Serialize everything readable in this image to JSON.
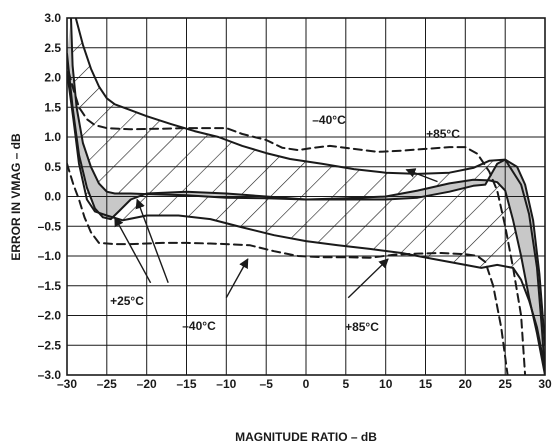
{
  "chart_data": {
    "type": "line",
    "title": "",
    "xlabel": "MAGNITUDE RATIO – dB",
    "ylabel": "ERROR IN VMAG – dB",
    "xlim": [
      -30,
      30
    ],
    "ylim": [
      -3.0,
      3.0
    ],
    "x_ticks": [
      "–30",
      "–25",
      "–20",
      "–15",
      "–10",
      "–5",
      "0",
      "5",
      "10",
      "15",
      "20",
      "25",
      "30"
    ],
    "y_ticks": [
      "3.0",
      "2.5",
      "2.0",
      "1.5",
      "1.0",
      "0.5",
      "0.0",
      "–0.5",
      "–1.0",
      "–1.5",
      "–2.0",
      "–2.5",
      "–3.0"
    ],
    "grid": true,
    "series": [
      {
        "name": "",
        "style": "solid",
        "points": [
          [
            -28.9,
            3.0
          ],
          [
            -28,
            2.55
          ],
          [
            -27,
            2.15
          ],
          [
            -26,
            1.85
          ],
          [
            -25,
            1.65
          ],
          [
            -24,
            1.55
          ],
          [
            -22,
            1.45
          ],
          [
            -20,
            1.35
          ],
          [
            -17,
            1.22
          ],
          [
            -14,
            1.1
          ],
          [
            -11,
            1.0
          ],
          [
            -8,
            0.85
          ],
          [
            -5,
            0.73
          ],
          [
            -2,
            0.63
          ],
          [
            2,
            0.55
          ],
          [
            6,
            0.46
          ],
          [
            10,
            0.4
          ],
          [
            14,
            0.38
          ],
          [
            18,
            0.4
          ],
          [
            21,
            0.48
          ],
          [
            23,
            0.6
          ],
          [
            25,
            0.62
          ],
          [
            27,
            0.2
          ],
          [
            28,
            -0.3
          ],
          [
            29,
            -1.2
          ],
          [
            29.6,
            -2.2
          ],
          [
            30,
            -3.0
          ]
        ]
      },
      {
        "name": "",
        "style": "solid",
        "points": [
          [
            -29.5,
            3.0
          ],
          [
            -29.3,
            2.2
          ],
          [
            -28.8,
            1.5
          ],
          [
            -28,
            0.9
          ],
          [
            -27,
            0.5
          ],
          [
            -26,
            0.22
          ],
          [
            -25,
            0.08
          ],
          [
            -24,
            0.05
          ],
          [
            -22,
            0.05
          ],
          [
            -20,
            0.04
          ],
          [
            -15,
            0.02
          ],
          [
            -10,
            -0.02
          ],
          [
            -5,
            -0.03
          ],
          [
            0,
            -0.05
          ],
          [
            5,
            -0.03
          ],
          [
            10,
            0.0
          ],
          [
            14,
            0.1
          ],
          [
            18,
            0.22
          ],
          [
            21,
            0.28
          ],
          [
            23,
            0.27
          ],
          [
            24,
            0.24
          ],
          [
            25,
            0.1
          ],
          [
            26,
            -0.4
          ],
          [
            27,
            -1.0
          ],
          [
            28,
            -1.7
          ],
          [
            29,
            -2.3
          ],
          [
            30,
            -3.0
          ]
        ]
      },
      {
        "name": "",
        "style": "solid",
        "points": [
          [
            -30,
            2.4
          ],
          [
            -29.3,
            1.5
          ],
          [
            -28.5,
            0.7
          ],
          [
            -27.5,
            0.15
          ],
          [
            -26.5,
            -0.2
          ],
          [
            -25.5,
            -0.35
          ],
          [
            -24.5,
            -0.38
          ],
          [
            -23.5,
            -0.25
          ],
          [
            -22,
            -0.05
          ],
          [
            -20,
            0.05
          ],
          [
            -15,
            0.08
          ],
          [
            -10,
            0.05
          ],
          [
            -5,
            0.0
          ],
          [
            0,
            -0.05
          ],
          [
            5,
            -0.05
          ],
          [
            10,
            -0.05
          ],
          [
            14,
            -0.02
          ],
          [
            18,
            0.08
          ],
          [
            21,
            0.18
          ],
          [
            22.5,
            0.2
          ],
          [
            24,
            0.55
          ],
          [
            25,
            0.62
          ],
          [
            26.5,
            0.5
          ],
          [
            27.5,
            0.2
          ],
          [
            28.5,
            -0.4
          ],
          [
            29.3,
            -1.3
          ],
          [
            30,
            -2.5
          ]
        ]
      },
      {
        "name": "",
        "style": "solid",
        "points": [
          [
            -30,
            2.1
          ],
          [
            -29.2,
            1.3
          ],
          [
            -28.5,
            0.55
          ],
          [
            -27.5,
            -0.05
          ],
          [
            -26.5,
            -0.25
          ],
          [
            -25,
            -0.32
          ],
          [
            -23,
            -0.4
          ],
          [
            -20,
            -0.32
          ],
          [
            -16,
            -0.32
          ],
          [
            -12,
            -0.38
          ],
          [
            -8,
            -0.52
          ],
          [
            -4,
            -0.65
          ],
          [
            0,
            -0.75
          ],
          [
            4,
            -0.82
          ],
          [
            8,
            -0.88
          ],
          [
            12,
            -0.95
          ],
          [
            16,
            -1.05
          ],
          [
            20,
            -1.15
          ],
          [
            22,
            -1.2
          ],
          [
            24,
            -1.15
          ],
          [
            26,
            -1.2
          ],
          [
            27,
            -1.4
          ],
          [
            28,
            -1.75
          ],
          [
            29,
            -2.2
          ],
          [
            30,
            -2.9
          ]
        ]
      },
      {
        "name": "",
        "style": "dashed",
        "points": [
          [
            -29.8,
            2.1
          ],
          [
            -29.2,
            1.8
          ],
          [
            -28.5,
            1.5
          ],
          [
            -27.5,
            1.3
          ],
          [
            -26.5,
            1.2
          ],
          [
            -25,
            1.15
          ],
          [
            -22,
            1.13
          ],
          [
            -18,
            1.14
          ],
          [
            -15,
            1.15
          ],
          [
            -12,
            1.15
          ],
          [
            -10,
            1.15
          ],
          [
            -8,
            1.05
          ],
          [
            -5,
            0.95
          ],
          [
            -3,
            0.82
          ],
          [
            -1,
            0.78
          ],
          [
            1,
            0.82
          ],
          [
            3,
            0.85
          ],
          [
            6,
            0.8
          ],
          [
            9,
            0.75
          ],
          [
            12,
            0.77
          ],
          [
            15,
            0.8
          ],
          [
            18,
            0.83
          ],
          [
            20,
            0.83
          ],
          [
            21.5,
            0.72
          ],
          [
            23,
            0.42
          ],
          [
            24,
            0.1
          ],
          [
            25,
            -0.5
          ],
          [
            26,
            -1.2
          ],
          [
            27,
            -2.0
          ],
          [
            27.5,
            -3.0
          ]
        ]
      },
      {
        "name": "",
        "style": "dashed",
        "points": [
          [
            -30,
            0.55
          ],
          [
            -29.2,
            0.2
          ],
          [
            -28.5,
            -0.05
          ],
          [
            -27.8,
            -0.35
          ],
          [
            -27,
            -0.6
          ],
          [
            -26,
            -0.78
          ],
          [
            -24,
            -0.8
          ],
          [
            -22,
            -0.8
          ],
          [
            -18,
            -0.78
          ],
          [
            -15,
            -0.78
          ],
          [
            -12,
            -0.79
          ],
          [
            -10,
            -0.8
          ],
          [
            -7,
            -0.82
          ],
          [
            -4,
            -0.92
          ],
          [
            -1,
            -1.0
          ],
          [
            2,
            -1.02
          ],
          [
            5,
            -1.02
          ],
          [
            8,
            -1.03
          ],
          [
            11,
            -0.98
          ],
          [
            14,
            -0.96
          ],
          [
            17,
            -0.95
          ],
          [
            20,
            -0.97
          ],
          [
            21.5,
            -1.0
          ],
          [
            22.5,
            -1.1
          ],
          [
            23.5,
            -1.5
          ],
          [
            24.5,
            -2.2
          ],
          [
            25.3,
            -3.0
          ]
        ]
      }
    ],
    "annotations": [
      {
        "text": "–40°C"
      },
      {
        "text": "+85°C"
      },
      {
        "text": "+25°C"
      },
      {
        "text": "–40°C"
      },
      {
        "text": "+85°C"
      }
    ]
  }
}
